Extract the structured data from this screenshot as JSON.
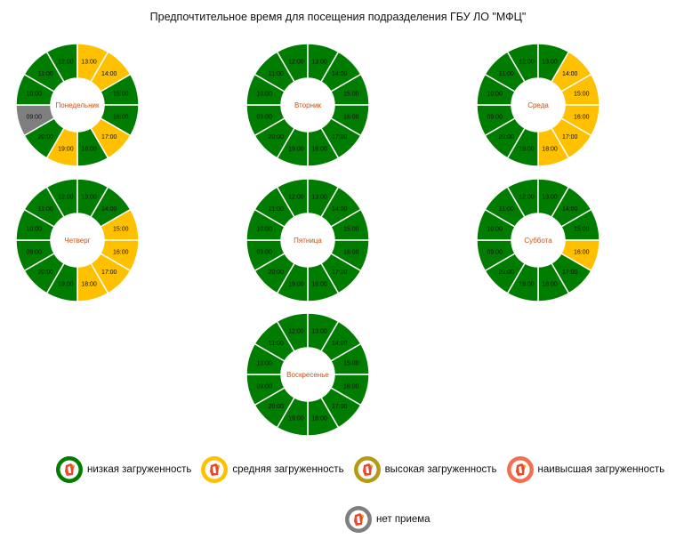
{
  "title": "Предпочтительное время для посещения подразделения ГБУ ЛО \"МФЦ\"",
  "colors": {
    "low": "#007d00",
    "medium": "#ffc000",
    "high": "#b49b14",
    "highest": "#f56e50",
    "closed": "#7f7f7f",
    "day_label": "#c0541c"
  },
  "chart_data": [
    {
      "type": "pie",
      "title": "Понедельник",
      "categories": [
        "09:00",
        "10:00",
        "11:00",
        "12:00",
        "13:00",
        "14:00",
        "15:00",
        "16:00",
        "17:00",
        "18:00",
        "19:00",
        "20:00"
      ],
      "status": [
        "closed",
        "low",
        "low",
        "low",
        "medium",
        "medium",
        "low",
        "low",
        "medium",
        "low",
        "medium",
        "low"
      ]
    },
    {
      "type": "pie",
      "title": "Вторник",
      "categories": [
        "09:00",
        "10:00",
        "11:00",
        "12:00",
        "13:00",
        "14:00",
        "15:00",
        "16:00",
        "17:00",
        "18:00",
        "19:00",
        "20:00"
      ],
      "status": [
        "low",
        "low",
        "low",
        "low",
        "low",
        "low",
        "low",
        "low",
        "low",
        "low",
        "low",
        "low"
      ]
    },
    {
      "type": "pie",
      "title": "Среда",
      "categories": [
        "09:00",
        "10:00",
        "11:00",
        "12:00",
        "13:00",
        "14:00",
        "15:00",
        "16:00",
        "17:00",
        "18:00",
        "19:00",
        "20:00"
      ],
      "status": [
        "low",
        "low",
        "low",
        "low",
        "low",
        "medium",
        "medium",
        "medium",
        "medium",
        "medium",
        "low",
        "low"
      ]
    },
    {
      "type": "pie",
      "title": "Четверг",
      "categories": [
        "09:00",
        "10:00",
        "11:00",
        "12:00",
        "13:00",
        "14:00",
        "15:00",
        "16:00",
        "17:00",
        "18:00",
        "19:00",
        "20:00"
      ],
      "status": [
        "low",
        "low",
        "low",
        "low",
        "low",
        "low",
        "medium",
        "medium",
        "medium",
        "medium",
        "low",
        "low"
      ]
    },
    {
      "type": "pie",
      "title": "Пятница",
      "categories": [
        "09:00",
        "10:00",
        "11:00",
        "12:00",
        "13:00",
        "14:00",
        "15:00",
        "16:00",
        "17:00",
        "18:00",
        "19:00",
        "20:00"
      ],
      "status": [
        "low",
        "low",
        "low",
        "low",
        "low",
        "low",
        "low",
        "low",
        "low",
        "low",
        "low",
        "low"
      ]
    },
    {
      "type": "pie",
      "title": "Суббота",
      "categories": [
        "09:00",
        "10:00",
        "11:00",
        "12:00",
        "13:00",
        "14:00",
        "15:00",
        "16:00",
        "17:00",
        "18:00",
        "19:00",
        "20:00"
      ],
      "status": [
        "low",
        "low",
        "low",
        "low",
        "low",
        "low",
        "low",
        "medium",
        "low",
        "low",
        "low",
        "low"
      ]
    },
    {
      "type": "pie",
      "title": "Воскресенье",
      "categories": [
        "09:00",
        "10:00",
        "11:00",
        "12:00",
        "13:00",
        "14:00",
        "15:00",
        "16:00",
        "17:00",
        "18:00",
        "19:00",
        "20:00"
      ],
      "status": [
        "low",
        "low",
        "low",
        "low",
        "low",
        "low",
        "low",
        "low",
        "low",
        "low",
        "low",
        "low"
      ]
    }
  ],
  "legend": [
    {
      "key": "low",
      "label": "низкая загруженность",
      "icon": "mfc-logo-icon"
    },
    {
      "key": "medium",
      "label": "средняя загруженность",
      "icon": "mfc-logo-icon"
    },
    {
      "key": "high",
      "label": "высокая загруженность",
      "icon": "mfc-logo-icon"
    },
    {
      "key": "highest",
      "label": "наивысшая загруженность",
      "icon": "mfc-logo-icon"
    },
    {
      "key": "closed",
      "label": "нет приема",
      "icon": "mfc-logo-icon"
    }
  ]
}
